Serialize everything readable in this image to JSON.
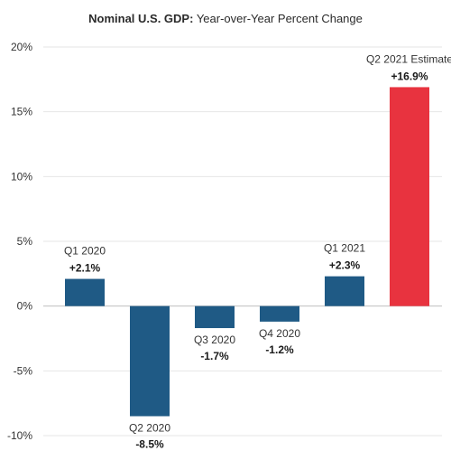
{
  "chart_data": {
    "type": "bar",
    "title_bold": "Nominal U.S. GDP:",
    "title_rest": " Year-over-Year Percent Change",
    "categories": [
      "Q1 2020",
      "Q2 2020",
      "Q3 2020",
      "Q4 2020",
      "Q1 2021",
      "Q2 2021 Estimate"
    ],
    "values": [
      2.1,
      -8.5,
      -1.7,
      -1.2,
      2.3,
      16.9
    ],
    "value_labels": [
      "+2.1%",
      "-8.5%",
      "-1.7%",
      "-1.2%",
      "+2.3%",
      "+16.9%"
    ],
    "y_ticks": [
      20,
      15,
      10,
      5,
      0,
      -5,
      -10
    ],
    "y_tick_labels": [
      "20%",
      "15%",
      "10%",
      "5%",
      "0%",
      "-5%",
      "-10%"
    ],
    "ylim": [
      -10,
      20
    ],
    "grid": true,
    "colors": {
      "actual": "#1f5a85",
      "estimate": "#e8333f",
      "grid": "#e6e6e6",
      "zero_line": "#bfbfbf"
    },
    "highlight_index": 5
  }
}
